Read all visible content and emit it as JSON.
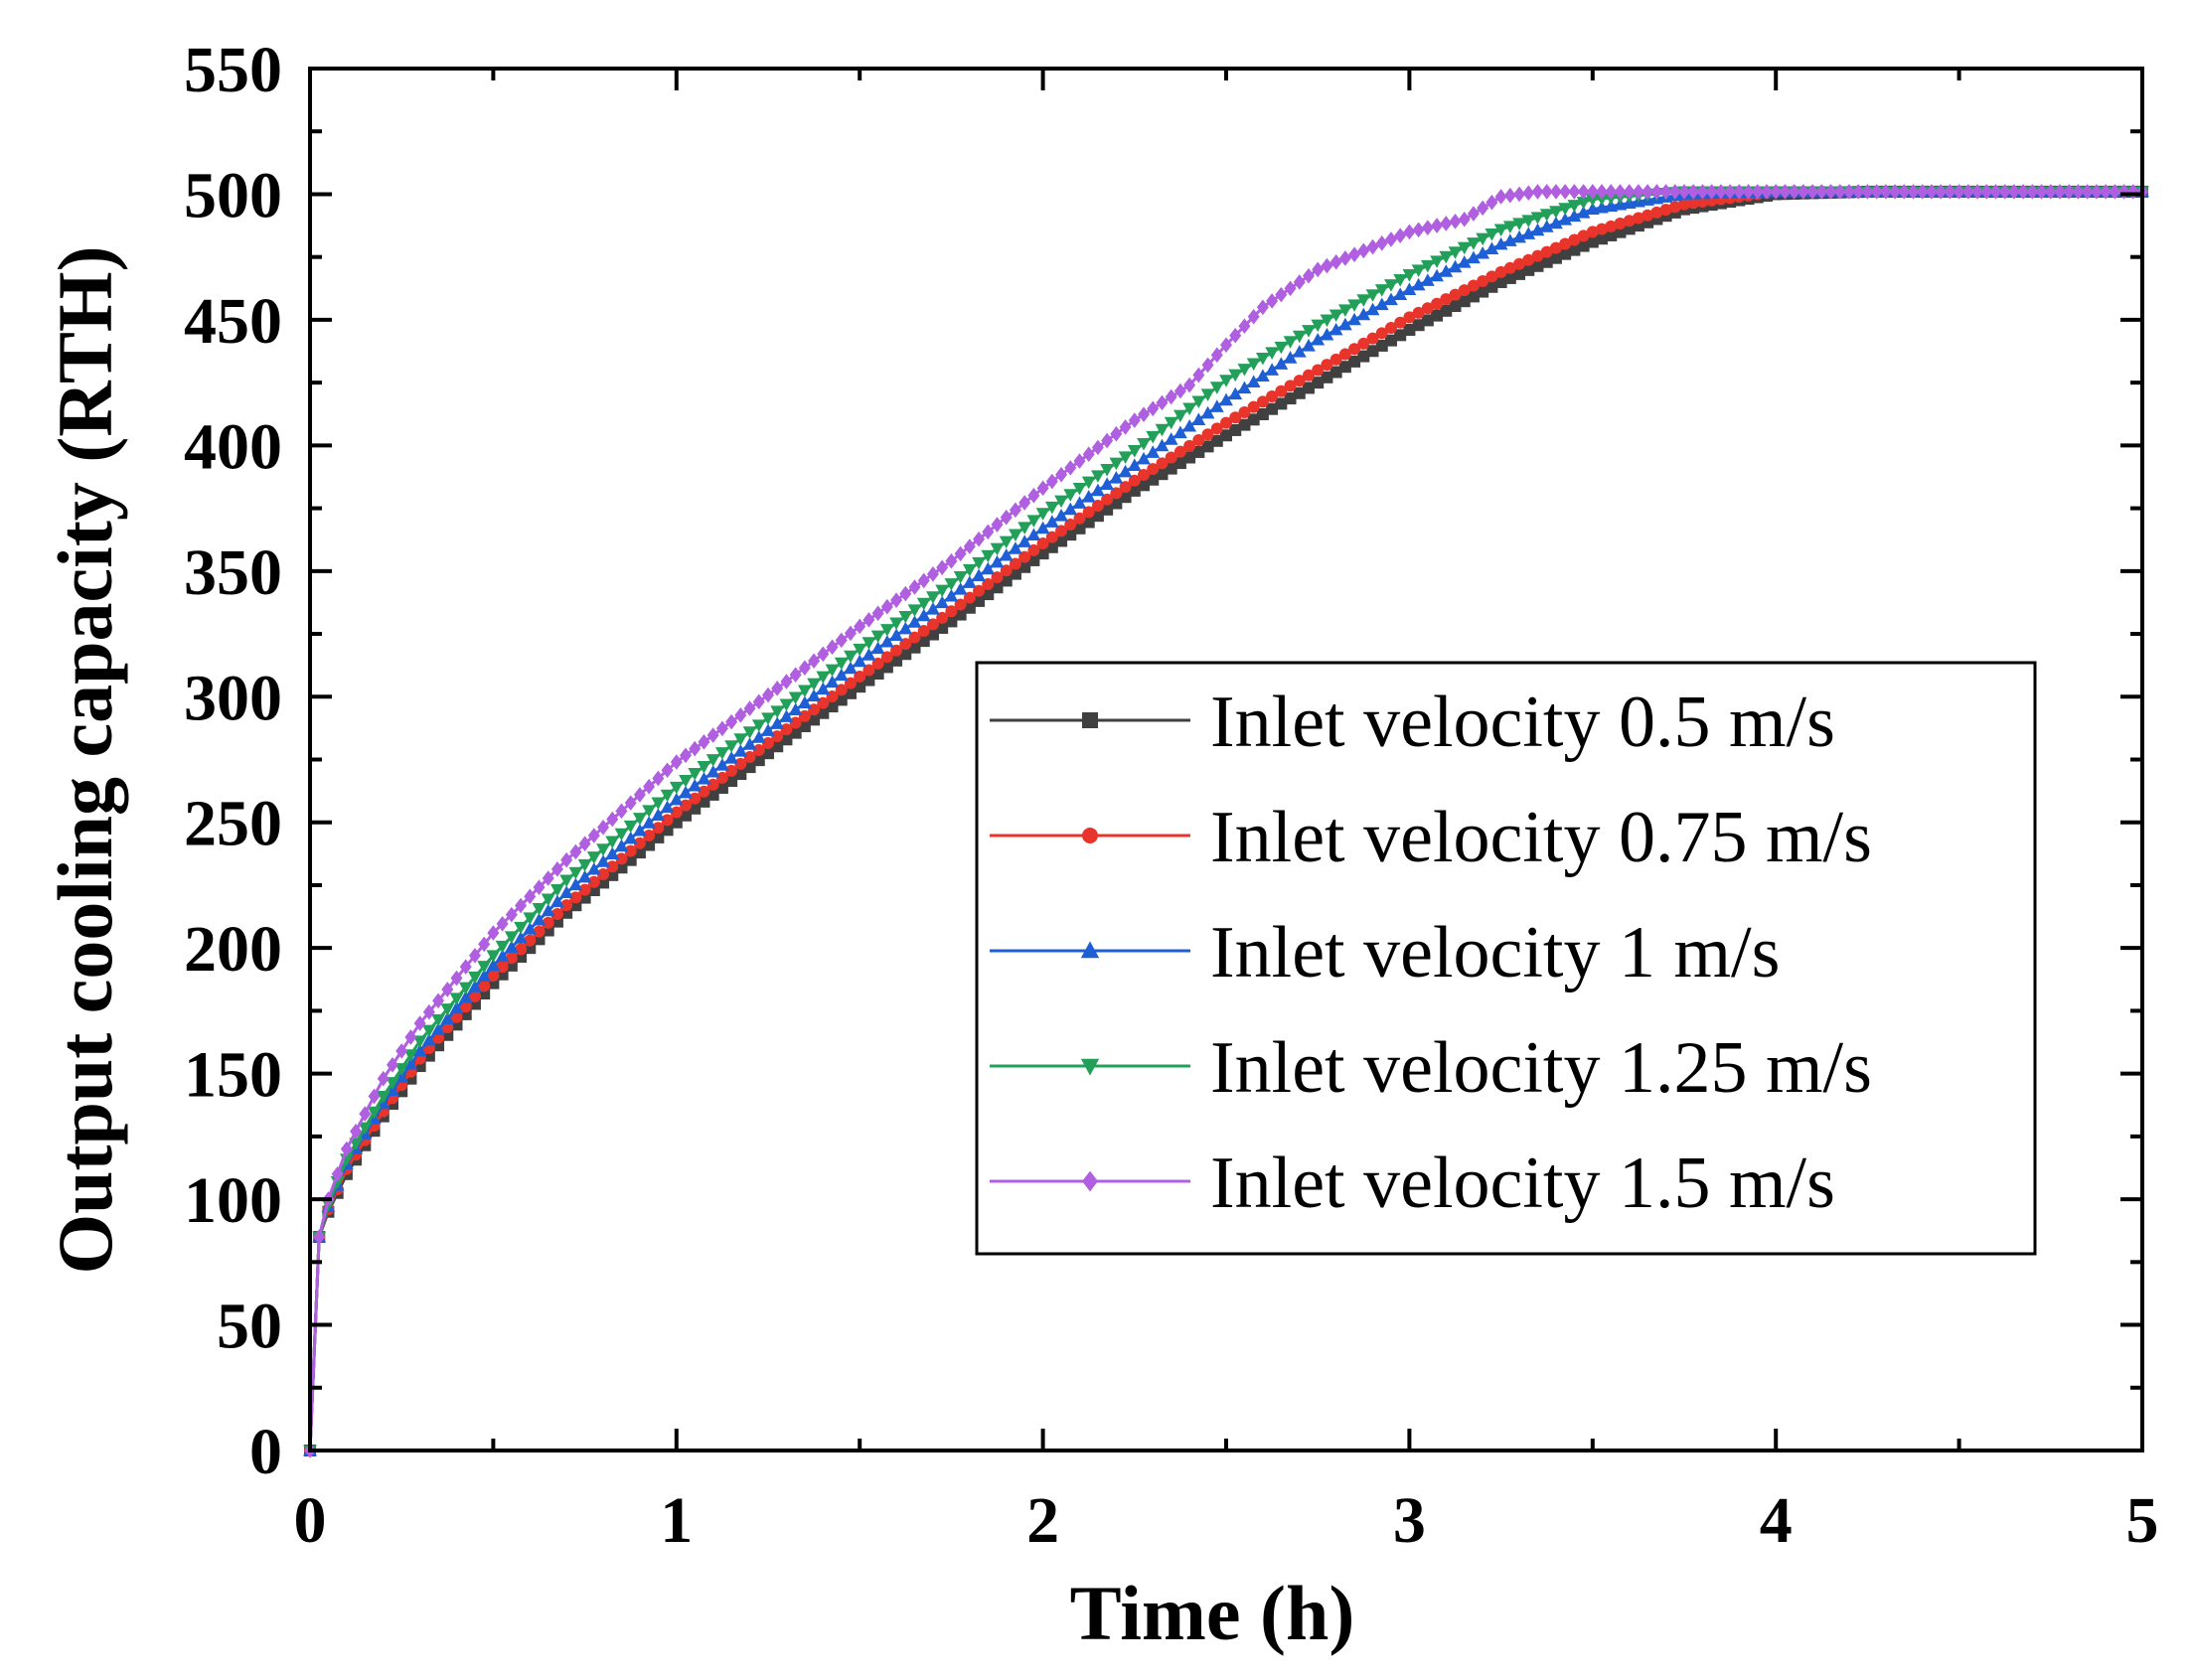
{
  "chart_data": {
    "type": "line",
    "title": "",
    "xlabel": "Time (h)",
    "ylabel": "Output cooling capacity (RTH)",
    "xlim": [
      0,
      5
    ],
    "ylim": [
      0,
      550
    ],
    "xticks": [
      0,
      1,
      2,
      3,
      4,
      5
    ],
    "xtick_labels": [
      "0",
      "1",
      "2",
      "3",
      "4",
      "5"
    ],
    "yticks": [
      0,
      50,
      100,
      150,
      200,
      250,
      300,
      350,
      400,
      450,
      500,
      550
    ],
    "ytick_labels": [
      "0",
      "50",
      "100",
      "150",
      "200",
      "250",
      "300",
      "350",
      "400",
      "450",
      "500",
      "550"
    ],
    "grid": false,
    "legend_position": "center-right",
    "series": [
      {
        "name": "Inlet velocity 0.5 m/s",
        "color": "#404040",
        "marker": "square",
        "x": [
          0,
          0.025,
          0.05,
          0.1,
          0.2,
          0.3,
          0.5,
          0.7,
          1.0,
          1.3,
          1.5,
          1.75,
          2.0,
          2.25,
          2.5,
          2.75,
          3.0,
          3.25,
          3.5,
          3.75,
          4.0,
          4.25,
          4.5,
          4.75,
          5.0
        ],
        "values": [
          0,
          85,
          95,
          110,
          133,
          153,
          186,
          214,
          250,
          283,
          304,
          330,
          357,
          382,
          404,
          425,
          446,
          465,
          481,
          494,
          500,
          501,
          501,
          501,
          501
        ]
      },
      {
        "name": "Inlet velocity 0.75 m/s",
        "color": "#e8342b",
        "marker": "circle",
        "x": [
          0,
          0.025,
          0.05,
          0.1,
          0.2,
          0.3,
          0.5,
          0.7,
          1.0,
          1.3,
          1.5,
          1.75,
          2.0,
          2.25,
          2.5,
          2.75,
          3.0,
          3.25,
          3.5,
          3.75,
          4.0,
          4.25,
          4.5,
          4.75,
          5.0
        ],
        "values": [
          0,
          85,
          96,
          112,
          135,
          156,
          189,
          217,
          254,
          287,
          308,
          334,
          361,
          386,
          409,
          430,
          451,
          469,
          485,
          496,
          501,
          501,
          501,
          501,
          501
        ]
      },
      {
        "name": "Inlet velocity 1 m/s",
        "color": "#1f5fd6",
        "marker": "triangle-up",
        "x": [
          0,
          0.025,
          0.05,
          0.1,
          0.2,
          0.3,
          0.5,
          0.7,
          1.0,
          1.3,
          1.5,
          1.75,
          2.0,
          2.25,
          2.5,
          2.75,
          3.0,
          3.25,
          3.5,
          3.75,
          4.0,
          4.25,
          4.5,
          4.75,
          5.0
        ],
        "values": [
          0,
          85,
          97,
          114,
          138,
          159,
          193,
          222,
          259,
          292,
          314,
          340,
          367,
          392,
          418,
          442,
          462,
          480,
          494,
          500,
          501,
          501,
          501,
          501,
          501
        ]
      },
      {
        "name": "Inlet velocity 1.25 m/s",
        "color": "#22a05a",
        "marker": "triangle-down",
        "x": [
          0,
          0.025,
          0.05,
          0.1,
          0.2,
          0.3,
          0.5,
          0.7,
          1.0,
          1.3,
          1.5,
          1.75,
          2.0,
          2.25,
          2.5,
          2.75,
          3.0,
          3.25,
          3.5,
          3.75,
          4.0,
          4.25,
          4.5,
          4.75,
          5.0
        ],
        "values": [
          0,
          85,
          98,
          116,
          141,
          163,
          197,
          227,
          264,
          297,
          319,
          345,
          373,
          398,
          426,
          448,
          468,
          486,
          498,
          501,
          501,
          501,
          501,
          501,
          501
        ]
      },
      {
        "name": "Inlet velocity 1.5 m/s",
        "color": "#b05fe0",
        "marker": "diamond",
        "x": [
          0,
          0.025,
          0.05,
          0.1,
          0.2,
          0.3,
          0.5,
          0.7,
          1.0,
          1.3,
          1.5,
          1.75,
          2.0,
          2.25,
          2.4,
          2.5,
          2.6,
          2.75,
          3.0,
          3.15,
          3.25,
          3.35,
          3.5,
          3.75,
          4.0,
          4.25,
          4.5,
          4.75,
          5.0
        ],
        "values": [
          0,
          85,
          100,
          120,
          148,
          170,
          206,
          235,
          274,
          306,
          328,
          354,
          383,
          410,
          424,
          440,
          455,
          470,
          485,
          490,
          499,
          501,
          501,
          501,
          501,
          501,
          501,
          501,
          501
        ]
      }
    ]
  }
}
